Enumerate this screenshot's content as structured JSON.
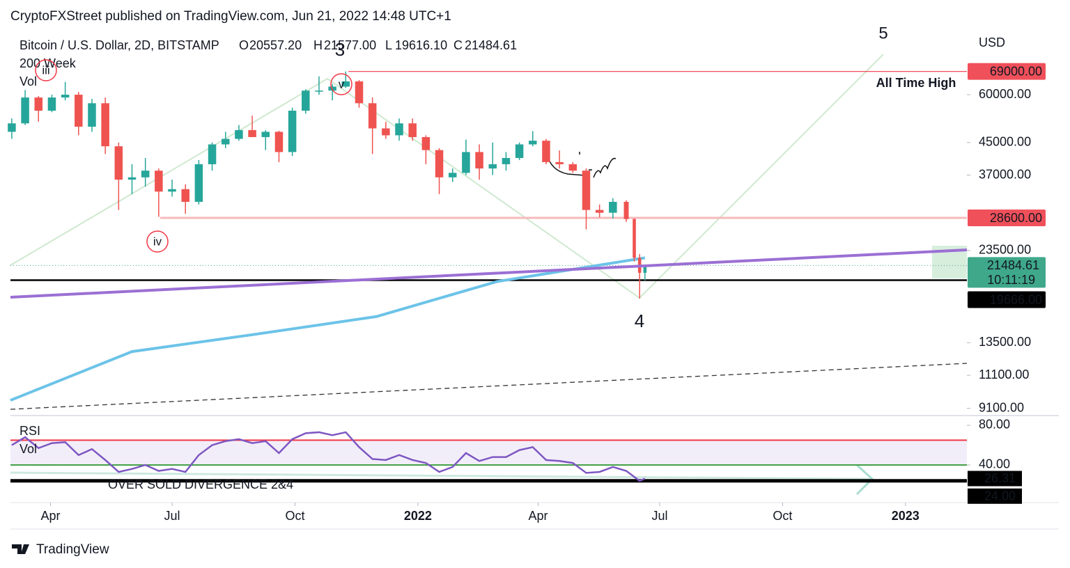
{
  "header": {
    "published": "CryptoFXStreet published on TradingView.com, Jun 21, 2022 14:48 UTC+1"
  },
  "footer": {
    "brand": "TradingView"
  },
  "chart_data": [
    {
      "type": "candlestick",
      "title": "Bitcoin / U.S. Dollar, 2D, BITSTAMP",
      "legend_values": [
        {
          "label": "O",
          "value": "20557.20"
        },
        {
          "label": "H",
          "value": "21577.00"
        },
        {
          "label": "L",
          "value": "19616.10"
        },
        {
          "label": "C",
          "value": "21484.61"
        }
      ],
      "y_unit": "USD",
      "log_scale": true,
      "xlim": [
        "2021-03-02",
        "2023-02-16"
      ],
      "xticks": [
        {
          "value": "2021-04-01",
          "label": "Apr"
        },
        {
          "value": "2021-07-01",
          "label": "Jul"
        },
        {
          "value": "2021-10-01",
          "label": "Oct"
        },
        {
          "value": "2022-01-01",
          "label": "2022"
        },
        {
          "value": "2022-04-01",
          "label": "Apr"
        },
        {
          "value": "2022-07-01",
          "label": "Jul"
        },
        {
          "value": "2022-10-01",
          "label": "Oct"
        },
        {
          "value": "2023-01-01",
          "label": "2023"
        }
      ],
      "ylim": [
        8785,
        89700
      ],
      "yticks": [
        {
          "value": 60000,
          "label": "60000.00"
        },
        {
          "value": 45000,
          "label": "45000.00"
        },
        {
          "value": 37000,
          "label": "37000.00"
        },
        {
          "value": 23500,
          "label": "23500.00"
        },
        {
          "value": 13500,
          "label": "13500.00"
        },
        {
          "value": 11100,
          "label": "11100.00"
        },
        {
          "value": 9100,
          "label": "9100.00"
        }
      ],
      "up_color": "#26a69a",
      "down_color": "#ef5350",
      "x": [
        "2021-03-03",
        "2021-03-13",
        "2021-03-23",
        "2021-04-02",
        "2021-04-12",
        "2021-04-22",
        "2021-05-02",
        "2021-05-12",
        "2021-05-22",
        "2021-06-01",
        "2021-06-11",
        "2021-06-21",
        "2021-07-01",
        "2021-07-11",
        "2021-07-21",
        "2021-07-31",
        "2021-08-10",
        "2021-08-20",
        "2021-08-30",
        "2021-09-09",
        "2021-09-19",
        "2021-09-29",
        "2021-10-09",
        "2021-10-19",
        "2021-10-29",
        "2021-11-08",
        "2021-11-18",
        "2021-11-28",
        "2021-12-08",
        "2021-12-18",
        "2021-12-28",
        "2022-01-07",
        "2022-01-17",
        "2022-01-27",
        "2022-02-06",
        "2022-02-16",
        "2022-02-26",
        "2022-03-08",
        "2022-03-18",
        "2022-03-28",
        "2022-04-07",
        "2022-04-17",
        "2022-04-27",
        "2022-05-07",
        "2022-05-17",
        "2022-05-27",
        "2022-06-06",
        "2022-06-12",
        "2022-06-16",
        "2022-06-20"
      ],
      "open": [
        48000,
        50500,
        59000,
        54500,
        59000,
        60000,
        49500,
        57000,
        44000,
        36000,
        36500,
        38000,
        33500,
        34000,
        31500,
        39500,
        44500,
        46000,
        48500,
        46500,
        48000,
        42500,
        54500,
        61500,
        61500,
        63000,
        65000,
        57000,
        49000,
        47000,
        50500,
        46500,
        43000,
        36500,
        37500,
        42500,
        38500,
        39500,
        41000,
        44500,
        45500,
        40000,
        39500,
        38000,
        30000,
        29500,
        31500,
        28400,
        22500,
        20557.2
      ],
      "high": [
        52000,
        61700,
        59500,
        60000,
        64800,
        61000,
        58500,
        59000,
        45000,
        39500,
        41000,
        38500,
        36000,
        35000,
        40500,
        45000,
        48000,
        50000,
        52900,
        48500,
        48300,
        55500,
        62000,
        67000,
        64000,
        69000,
        65500,
        59000,
        51000,
        52000,
        52000,
        47000,
        43500,
        38500,
        45800,
        44500,
        45000,
        42500,
        45000,
        48200,
        46000,
        42900,
        40000,
        38500,
        31000,
        32200,
        31800,
        28500,
        23000,
        21577
      ],
      "low": [
        46000,
        50000,
        51000,
        54000,
        58000,
        47000,
        48000,
        42000,
        30000,
        33000,
        34500,
        28800,
        32500,
        29300,
        31000,
        38000,
        43500,
        45500,
        46500,
        43000,
        40000,
        41500,
        53500,
        60000,
        58000,
        62500,
        55500,
        42000,
        46000,
        45500,
        45500,
        39500,
        33000,
        35500,
        37000,
        36000,
        37000,
        38000,
        40500,
        44000,
        39500,
        38500,
        37500,
        26700,
        28700,
        28500,
        27900,
        22000,
        17600,
        19616.1
      ],
      "close": [
        50500,
        59000,
        54500,
        59000,
        60000,
        49500,
        57000,
        44000,
        36000,
        36500,
        38000,
        33500,
        34000,
        31500,
        39500,
        44500,
        46000,
        48500,
        46500,
        48000,
        42500,
        54500,
        61500,
        61500,
        63000,
        65000,
        57000,
        49000,
        47000,
        50500,
        46500,
        43000,
        36500,
        37500,
        42500,
        38500,
        39500,
        41000,
        44500,
        45500,
        40000,
        39500,
        38000,
        30000,
        29500,
        31500,
        28400,
        22500,
        20557.2,
        21484.61
      ],
      "last_price": {
        "countdown": "10:11:19",
        "color": "#3fa88a"
      },
      "indicators": [
        {
          "name": "200 Week",
          "color": "#6cc3e8",
          "x": [
            "2021-03-02",
            "2021-06-01",
            "2021-09-01",
            "2021-12-01",
            "2022-03-01",
            "2022-06-20"
          ],
          "values": [
            9550,
            12800,
            14200,
            15800,
            19500,
            22500
          ]
        }
      ],
      "volume_label": "Vol",
      "price_lines": [
        {
          "value": 69000,
          "label": "69000.00",
          "color": "#f23645",
          "box_color": "#f0505a",
          "start": "2021-11-10"
        },
        {
          "value": 28600,
          "label": "28600.00",
          "color": "#f7b9bb",
          "box_color": "#f0505a",
          "start": "2021-06-22"
        },
        {
          "value": 19666,
          "label": "19666.00",
          "color": "#000000",
          "box_color": "#000000",
          "start": "2021-03-02"
        }
      ],
      "annotations": [
        {
          "text": "5",
          "color": "#66bb6a",
          "circled": false
        },
        {
          "text": "3",
          "color": "#66bb6a",
          "circled": false
        },
        {
          "text": "4",
          "color": "#66bb6a",
          "circled": false
        },
        {
          "text": "iii",
          "color": "#f23645",
          "circled": true
        },
        {
          "text": "v",
          "color": "#f23645",
          "circled": true
        },
        {
          "text": "iv",
          "color": "#f23645",
          "circled": true
        },
        {
          "text": "All Time High",
          "color": "#f23645",
          "circled": false
        }
      ]
    },
    {
      "type": "line",
      "ylim": [
        3.5,
        89.8
      ],
      "yticks": [
        {
          "value": 80,
          "label": "80.00"
        },
        {
          "value": 40,
          "label": "40.00"
        }
      ],
      "x": [
        "2021-03-03",
        "2021-03-13",
        "2021-03-23",
        "2021-04-02",
        "2021-04-12",
        "2021-04-22",
        "2021-05-02",
        "2021-05-12",
        "2021-05-22",
        "2021-06-01",
        "2021-06-11",
        "2021-06-21",
        "2021-07-01",
        "2021-07-11",
        "2021-07-21",
        "2021-07-31",
        "2021-08-10",
        "2021-08-20",
        "2021-08-30",
        "2021-09-09",
        "2021-09-19",
        "2021-09-29",
        "2021-10-09",
        "2021-10-19",
        "2021-10-29",
        "2021-11-08",
        "2021-11-18",
        "2021-11-28",
        "2021-12-08",
        "2021-12-18",
        "2021-12-28",
        "2022-01-07",
        "2022-01-17",
        "2022-01-27",
        "2022-02-06",
        "2022-02-16",
        "2022-02-26",
        "2022-03-08",
        "2022-03-18",
        "2022-03-28",
        "2022-04-07",
        "2022-04-17",
        "2022-04-27",
        "2022-05-07",
        "2022-05-17",
        "2022-05-27",
        "2022-06-06",
        "2022-06-12",
        "2022-06-16",
        "2022-06-20"
      ],
      "series": [
        {
          "name": "RSI",
          "color": "#7e57c2",
          "values": [
            60,
            68,
            57,
            62,
            63,
            50,
            56,
            45,
            33,
            36,
            40,
            34,
            36,
            33,
            50,
            60,
            64,
            66,
            62,
            64,
            52,
            66,
            72,
            73,
            70,
            73,
            58,
            46,
            45,
            50,
            45,
            42,
            33,
            38,
            52,
            44,
            48,
            48,
            55,
            58,
            45,
            44,
            42,
            32,
            33,
            38,
            34,
            28,
            24,
            26.31
          ]
        }
      ],
      "levels": [
        {
          "value": 65,
          "color": "#f23645"
        },
        {
          "value": 40,
          "color": "#43a047"
        },
        {
          "value": 24,
          "label": "24.00",
          "color": "#000000"
        }
      ],
      "volume_label": "Vol",
      "annotation": "OVER SOLD DIVERGENCE 2&4"
    }
  ]
}
